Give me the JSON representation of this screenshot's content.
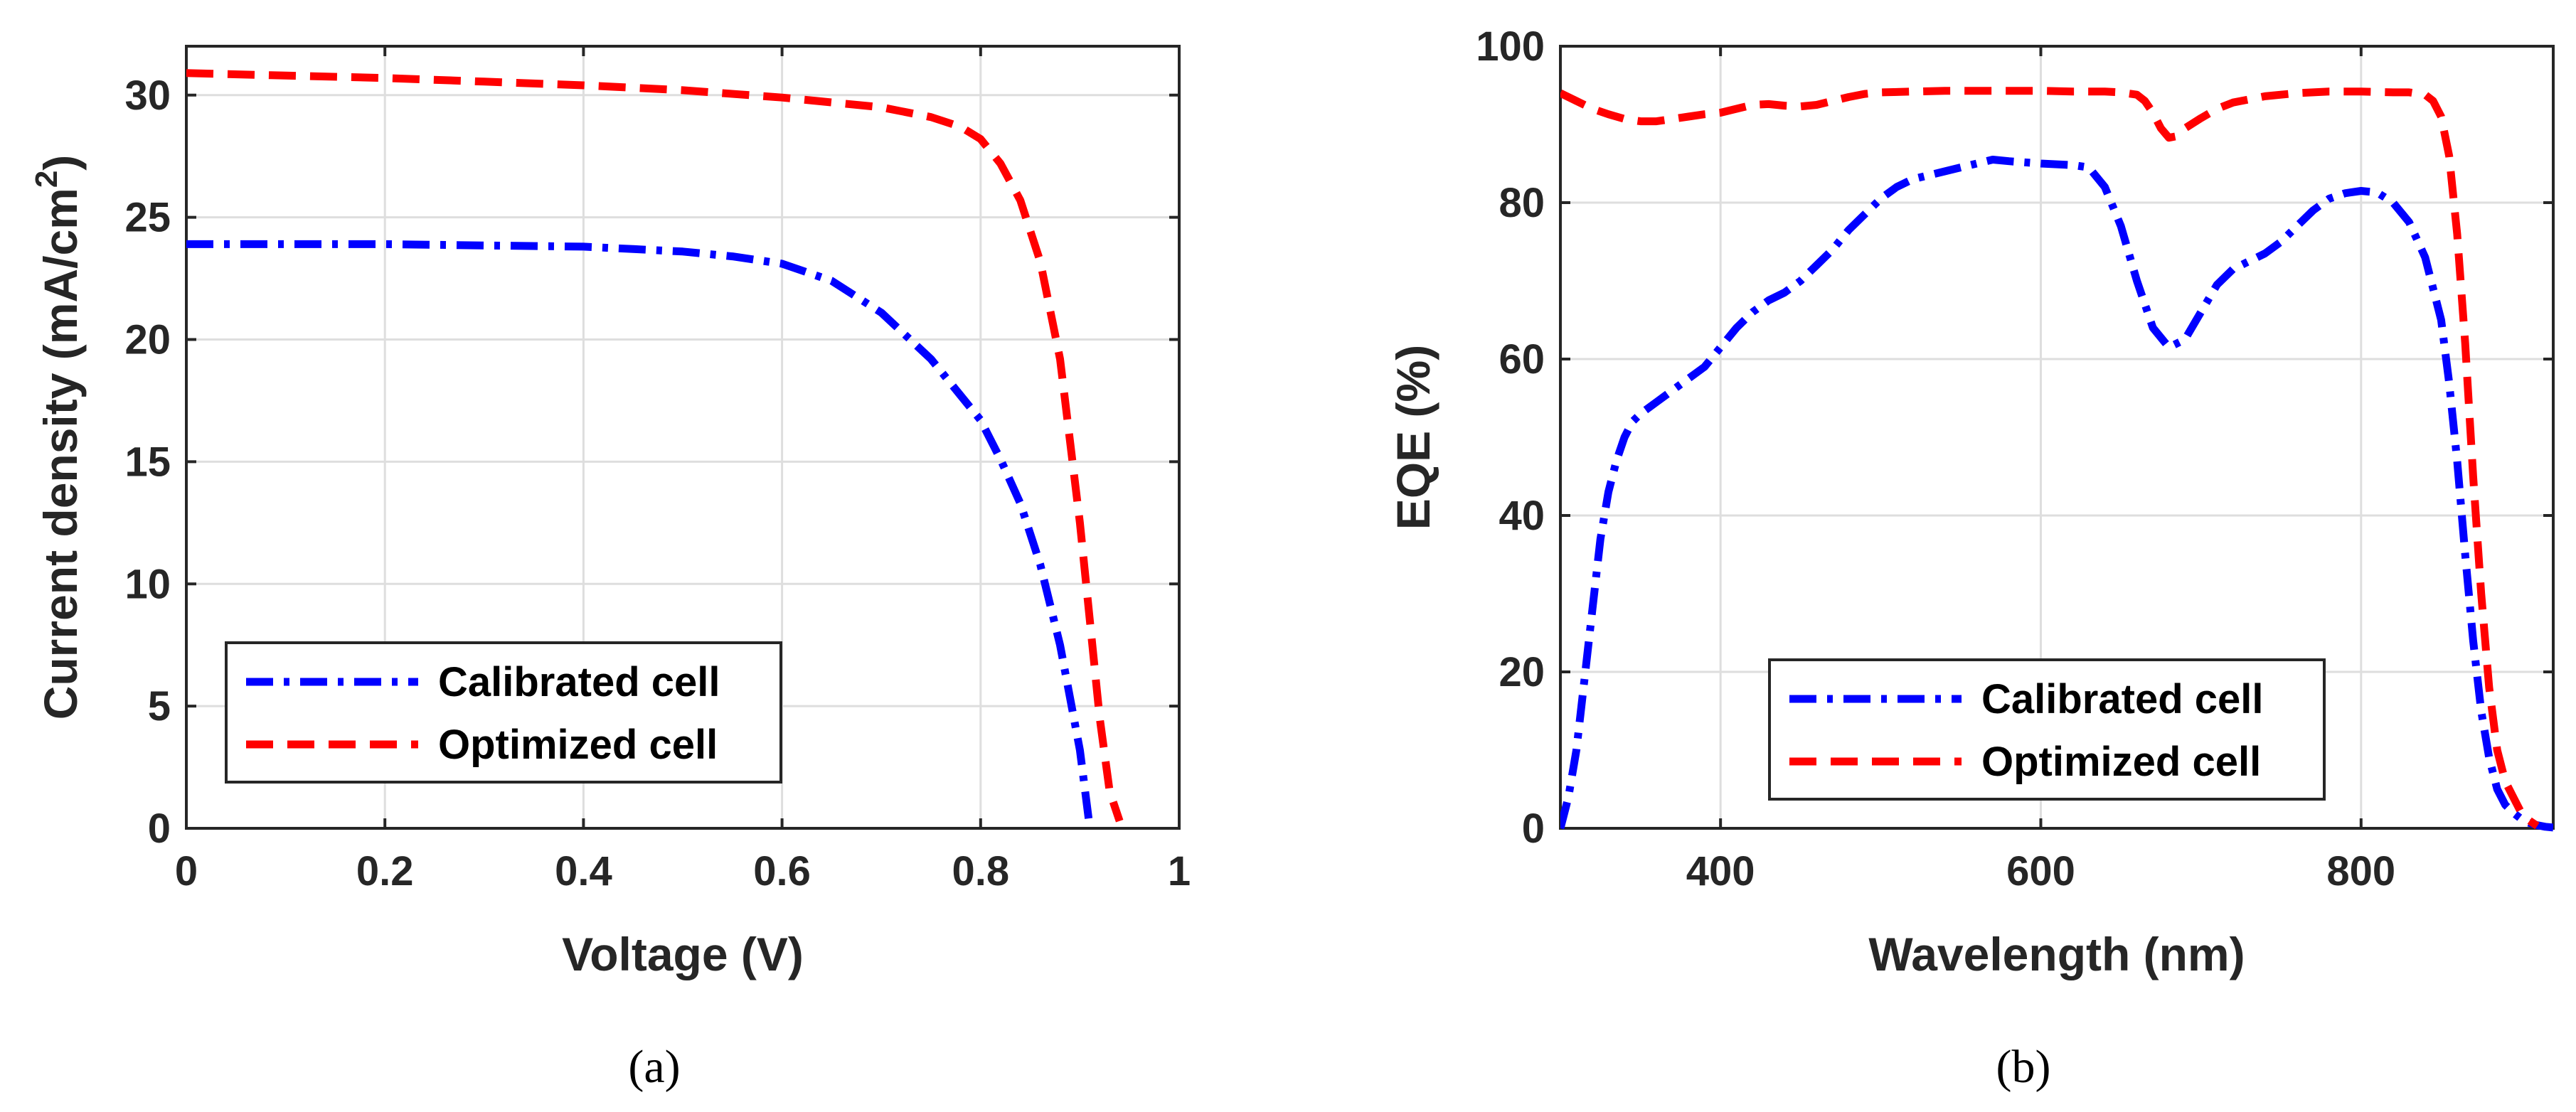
{
  "chart_data": [
    {
      "type": "line",
      "panel_caption": "(a)",
      "xlabel": "Voltage (V)",
      "ylabel": "Current density (mA/cm",
      "ylabel_superscript": "2",
      "ylabel_close": ")",
      "xlim": [
        0,
        1
      ],
      "ylim": [
        0,
        32
      ],
      "xticks": [
        0,
        0.2,
        0.4,
        0.6,
        0.8,
        1
      ],
      "xtick_labels": [
        "0",
        "0.2",
        "0.4",
        "0.6",
        "0.8",
        "1"
      ],
      "yticks": [
        0,
        5,
        10,
        15,
        20,
        25,
        30
      ],
      "ytick_labels": [
        "0",
        "5",
        "10",
        "15",
        "20",
        "25",
        "30"
      ],
      "grid": true,
      "legend_position": "bottom-left",
      "series": [
        {
          "name": "Calibrated cell",
          "color": "#0000ff",
          "style": "dash-dot",
          "x": [
            0,
            0.1,
            0.2,
            0.3,
            0.4,
            0.45,
            0.5,
            0.55,
            0.6,
            0.65,
            0.7,
            0.75,
            0.8,
            0.82,
            0.84,
            0.86,
            0.88,
            0.9,
            0.91
          ],
          "y": [
            23.9,
            23.9,
            23.9,
            23.85,
            23.8,
            23.7,
            23.6,
            23.4,
            23.1,
            22.4,
            21.1,
            19.2,
            16.7,
            15.1,
            13.3,
            10.8,
            7.5,
            3.2,
            0
          ]
        },
        {
          "name": "Optimized cell",
          "color": "#ff0000",
          "style": "dashed",
          "x": [
            0,
            0.1,
            0.2,
            0.3,
            0.4,
            0.5,
            0.6,
            0.7,
            0.75,
            0.78,
            0.8,
            0.82,
            0.84,
            0.86,
            0.88,
            0.9,
            0.91,
            0.92,
            0.93,
            0.94
          ],
          "y": [
            30.9,
            30.8,
            30.7,
            30.55,
            30.4,
            30.2,
            29.9,
            29.5,
            29.1,
            28.7,
            28.2,
            27.2,
            25.7,
            23.2,
            19.2,
            12.5,
            8.5,
            4.5,
            1.5,
            0.3
          ]
        }
      ]
    },
    {
      "type": "line",
      "panel_caption": "(b)",
      "xlabel": "Wavelength (nm)",
      "ylabel": "EQE (%)",
      "xlim": [
        300,
        920
      ],
      "ylim": [
        0,
        100
      ],
      "xticks": [
        400,
        600,
        800
      ],
      "xtick_labels": [
        "400",
        "600",
        "800"
      ],
      "yticks": [
        0,
        20,
        40,
        60,
        80,
        100
      ],
      "ytick_labels": [
        "0",
        "20",
        "40",
        "60",
        "80",
        "100"
      ],
      "grid": true,
      "legend_position": "bottom-center",
      "series": [
        {
          "name": "Calibrated cell",
          "color": "#0000ff",
          "style": "dash-dot",
          "x": [
            300,
            305,
            310,
            315,
            320,
            325,
            330,
            335,
            340,
            345,
            350,
            360,
            370,
            380,
            390,
            400,
            410,
            420,
            430,
            440,
            450,
            460,
            470,
            480,
            490,
            500,
            510,
            520,
            530,
            540,
            550,
            560,
            570,
            580,
            600,
            620,
            630,
            640,
            650,
            660,
            670,
            680,
            690,
            700,
            710,
            720,
            730,
            740,
            750,
            760,
            770,
            780,
            790,
            800,
            810,
            820,
            830,
            840,
            850,
            855,
            860,
            865,
            870,
            875,
            880,
            885,
            890,
            895,
            900,
            905,
            910,
            915,
            920
          ],
          "y": [
            0,
            4,
            10,
            19,
            28,
            37,
            43,
            47,
            50,
            52,
            53,
            54.5,
            56,
            57.5,
            59,
            61.5,
            64,
            66,
            67.5,
            68.5,
            70,
            72,
            74,
            76.5,
            78.5,
            80.5,
            82,
            83,
            83.5,
            84,
            84.5,
            85,
            85.5,
            85.3,
            85,
            84.8,
            84.5,
            82,
            77,
            70,
            64,
            61.5,
            62.5,
            66,
            69.5,
            71.5,
            72.5,
            73.5,
            75,
            77,
            79,
            80.5,
            81.2,
            81.5,
            81.3,
            80,
            77.5,
            73,
            65,
            57,
            47,
            35,
            24,
            15,
            9,
            5,
            3,
            2,
            1.2,
            0.7,
            0.4,
            0.2,
            0.1
          ]
        },
        {
          "name": "Optimized cell",
          "color": "#ff0000",
          "style": "dashed",
          "x": [
            300,
            310,
            320,
            330,
            340,
            350,
            360,
            370,
            380,
            390,
            400,
            410,
            420,
            430,
            440,
            450,
            460,
            470,
            480,
            490,
            500,
            520,
            540,
            560,
            580,
            600,
            620,
            640,
            650,
            660,
            665,
            670,
            675,
            680,
            685,
            690,
            700,
            710,
            720,
            740,
            760,
            780,
            800,
            820,
            830,
            840,
            845,
            850,
            855,
            860,
            865,
            870,
            875,
            880,
            885,
            890,
            895,
            900,
            905,
            910
          ],
          "y": [
            94,
            93,
            92,
            91.3,
            90.7,
            90.4,
            90.4,
            90.7,
            91,
            91.3,
            91.5,
            92,
            92.5,
            92.6,
            92.4,
            92.3,
            92.5,
            93,
            93.5,
            93.9,
            94.1,
            94.2,
            94.3,
            94.3,
            94.3,
            94.3,
            94.2,
            94.2,
            94.1,
            93.8,
            93,
            91.5,
            89.5,
            88.3,
            88.5,
            89.5,
            90.8,
            92,
            92.8,
            93.6,
            94,
            94.2,
            94.2,
            94.1,
            94.1,
            93.8,
            93,
            91,
            86,
            76,
            62,
            45,
            30,
            18,
            10,
            6,
            4,
            2,
            1,
            0.3
          ]
        }
      ]
    }
  ]
}
